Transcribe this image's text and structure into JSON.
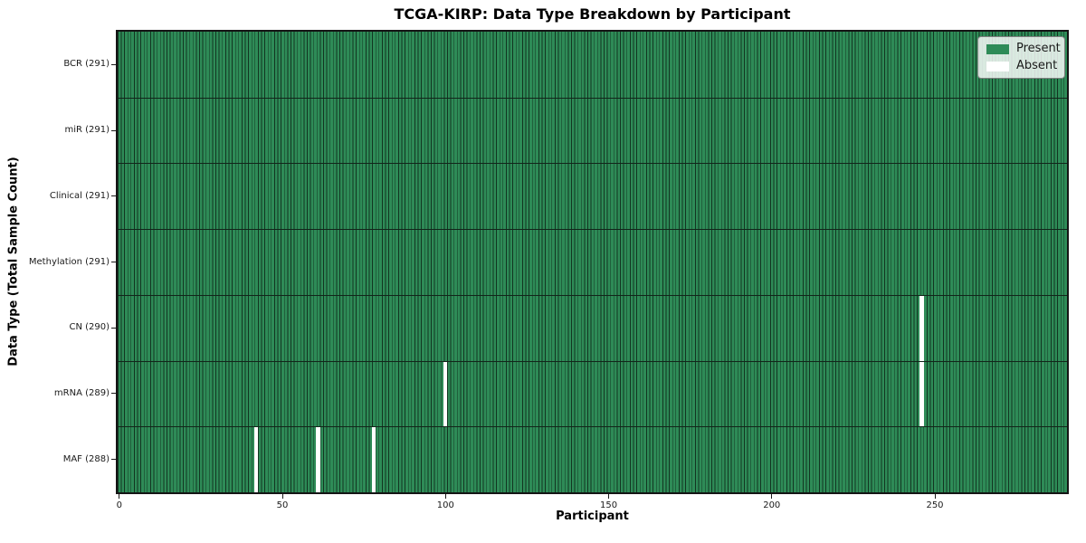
{
  "chart_data": {
    "type": "heatmap",
    "title": "TCGA-KIRP: Data Type Breakdown by Participant",
    "xlabel": "Participant",
    "ylabel": "Data Type (Total Sample Count)",
    "n_participants": 291,
    "xlim": [
      -0.5,
      290.5
    ],
    "x_ticks": [
      0,
      50,
      100,
      150,
      200,
      250
    ],
    "grid": false,
    "legend_position": "upper right",
    "rows": [
      {
        "label": "BCR (291)",
        "data_type": "BCR",
        "present_count": 291,
        "absent_participants": []
      },
      {
        "label": "miR (291)",
        "data_type": "miR",
        "present_count": 291,
        "absent_participants": []
      },
      {
        "label": "Clinical (291)",
        "data_type": "Clinical",
        "present_count": 291,
        "absent_participants": []
      },
      {
        "label": "Methylation (291)",
        "data_type": "Methylation",
        "present_count": 291,
        "absent_participants": []
      },
      {
        "label": "CN (290)",
        "data_type": "CN",
        "present_count": 290,
        "absent_participants": [
          246
        ]
      },
      {
        "label": "mRNA (289)",
        "data_type": "mRNA",
        "present_count": 289,
        "absent_participants": [
          100,
          246
        ]
      },
      {
        "label": "MAF (288)",
        "data_type": "MAF",
        "present_count": 288,
        "absent_participants": [
          42,
          61,
          78
        ]
      }
    ],
    "legend": [
      {
        "label": "Present",
        "color": "#2e8b57"
      },
      {
        "label": "Absent",
        "color": "#ffffff"
      }
    ],
    "colors": {
      "present": "#2e8b57",
      "absent": "#ffffff",
      "cell_edge": "#16301f",
      "row_border": "#12251a",
      "plot_border": "#151515",
      "legend_border": "#808080"
    }
  }
}
